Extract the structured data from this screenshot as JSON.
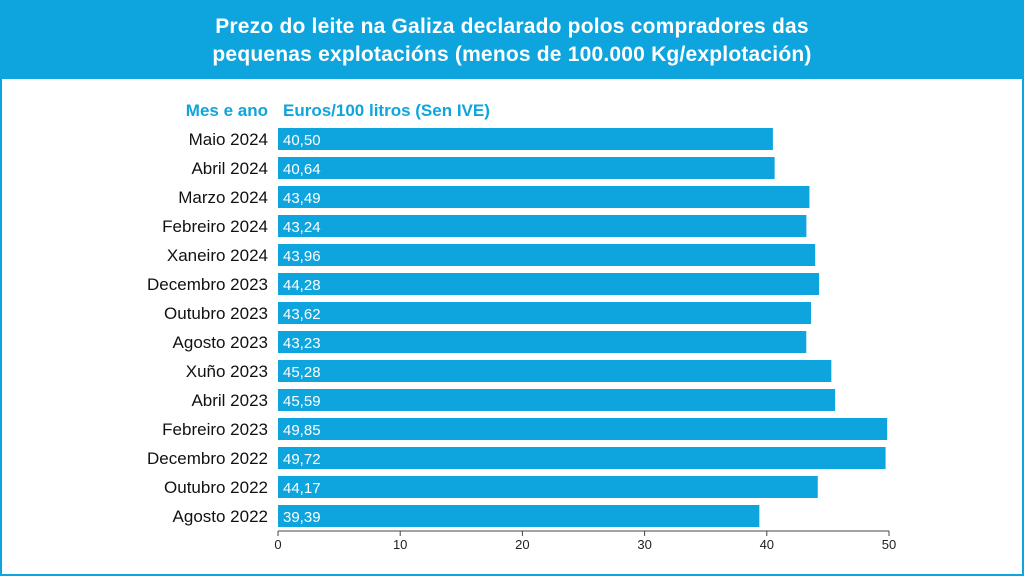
{
  "colors": {
    "accent": "#0ea5de",
    "bar": "#0ea5de",
    "text": "#111111"
  },
  "chart_data": {
    "type": "bar",
    "orientation": "horizontal",
    "title_lines": [
      "Prezo do leite na Galiza declarado polos compradores das",
      "pequenas explotacións (menos de 100.000 Kg/explotación)"
    ],
    "category_header": "Mes e ano",
    "value_header": "Euros/100 litros (Sen IVE)",
    "categories": [
      "Maio 2024",
      "Abril 2024",
      "Marzo 2024",
      "Febreiro 2024",
      "Xaneiro 2024",
      "Decembro 2023",
      "Outubro 2023",
      "Agosto 2023",
      "Xuño 2023",
      "Abril 2023",
      "Febreiro 2023",
      "Decembro 2022",
      "Outubro 2022",
      "Agosto 2022"
    ],
    "values": [
      40.5,
      40.64,
      43.49,
      43.24,
      43.96,
      44.28,
      43.62,
      43.23,
      45.28,
      45.59,
      49.85,
      49.72,
      44.17,
      39.39
    ],
    "value_labels": [
      "40,50",
      "40,64",
      "43,49",
      "43,24",
      "43,96",
      "44,28",
      "43,62",
      "43,23",
      "45,28",
      "45,59",
      "49,85",
      "49,72",
      "44,17",
      "39,39"
    ],
    "xlim": [
      0,
      50
    ],
    "xticks": [
      0,
      10,
      20,
      30,
      40,
      50
    ],
    "grid": false,
    "legend": "none"
  }
}
